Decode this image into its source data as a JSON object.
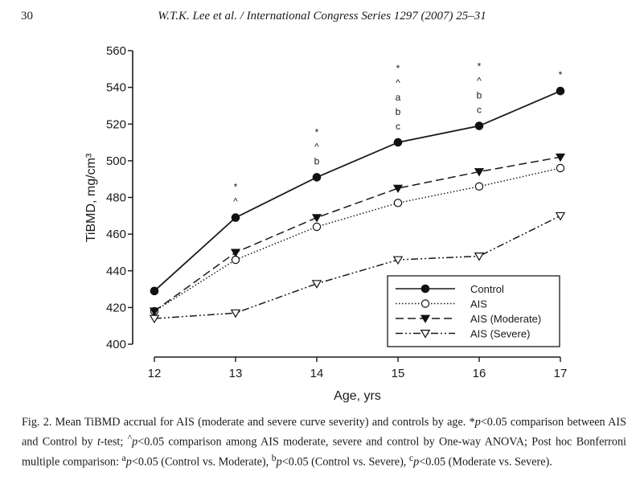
{
  "header": {
    "page_number": "30",
    "running_head": "W.T.K. Lee et al. / International Congress Series 1297 (2007) 25–31"
  },
  "chart_data": {
    "type": "line",
    "title": "",
    "xlabel": "Age, yrs",
    "ylabel": "TiBMD, mg/cm³",
    "x": [
      12,
      13,
      14,
      15,
      16,
      17
    ],
    "xlim": [
      12,
      17
    ],
    "ylim": [
      400,
      560
    ],
    "yticks": [
      400,
      420,
      440,
      460,
      480,
      500,
      520,
      540,
      560
    ],
    "grid": false,
    "legend_position": "bottom-right",
    "series": [
      {
        "name": "Control",
        "marker": "filled-circle",
        "line": "solid",
        "values": [
          429,
          469,
          491,
          510,
          519,
          538
        ]
      },
      {
        "name": "AIS",
        "marker": "open-circle",
        "line": "dotted",
        "values": [
          418,
          446,
          464,
          477,
          486,
          496
        ]
      },
      {
        "name": "AIS (Moderate)",
        "marker": "filled-triangle-down",
        "line": "dashed",
        "values": [
          418,
          450,
          469,
          485,
          494,
          502
        ]
      },
      {
        "name": "AIS (Severe)",
        "marker": "open-triangle-down",
        "line": "dash-dot-dot",
        "values": [
          414,
          417,
          433,
          446,
          448,
          470
        ]
      }
    ],
    "annotations": [
      {
        "x": 13,
        "labels": [
          "*",
          "^"
        ]
      },
      {
        "x": 14,
        "labels": [
          "*",
          "^",
          "b"
        ]
      },
      {
        "x": 15,
        "labels": [
          "*",
          "^",
          "a",
          "b",
          "c"
        ]
      },
      {
        "x": 16,
        "labels": [
          "*",
          "^",
          "b",
          "c"
        ]
      },
      {
        "x": 17,
        "labels": [
          "*"
        ]
      }
    ]
  },
  "caption": {
    "fig_label": "Fig. 2.",
    "s1": " Mean TiBMD accrual for AIS (moderate and severe curve severity) and controls by age. *",
    "p1": "p",
    "s2": "<0.05 comparison between AIS and Control by ",
    "t": "t",
    "s3": "-test; ",
    "sup_hat": "^",
    "p2": "p",
    "s4": "<0.05 comparison among AIS moderate, severe and control by One-way ANOVA; Post hoc Bonferroni multiple comparison: ",
    "sup_a": "a",
    "p3": "p",
    "s5": "<0.05 (Control vs. Moderate), ",
    "sup_b": "b",
    "p4": "p",
    "s6": "<0.05 (Control vs. Severe), ",
    "sup_c": "c",
    "p5": "p",
    "s7": "<0.05 (Moderate vs. Severe)."
  }
}
